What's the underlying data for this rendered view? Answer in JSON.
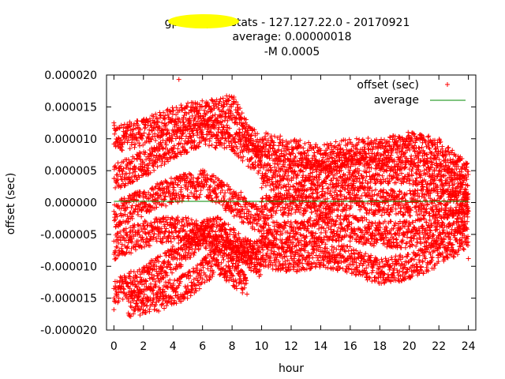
{
  "chart_data": {
    "type": "scatter",
    "title_lines": [
      {
        "prefix": "gps0/1",
        "suffix": " peerstats - 127.127.22.0 - 20170921"
      },
      "average: 0.00000018",
      "-M 0.0005"
    ],
    "xlabel": "hour",
    "ylabel": "offset (sec)",
    "xlim": [
      -0.5,
      24.5
    ],
    "ylim": [
      -2e-05,
      2e-05
    ],
    "x_ticks": [
      "0",
      "2",
      "4",
      "6",
      "8",
      "10",
      "12",
      "14",
      "16",
      "18",
      "20",
      "22",
      "24"
    ],
    "y_ticks": [
      "0.000020",
      "0.000015",
      "0.000010",
      "0.000005",
      "0.000000",
      "-0.000005",
      "-0.000010",
      "-0.000015",
      "-0.000020"
    ],
    "legend_position": "top-right",
    "series": [
      {
        "name": "offset (sec)",
        "style": "points",
        "marker": "plus",
        "color": "#ff0000",
        "bands": [
          {
            "x": [
              0,
              2,
              4,
              6,
              8,
              9,
              10
            ],
            "y": [
              1e-05,
              1.1e-05,
              1.3e-05,
              1.4e-05,
              1.5e-05,
              1.1e-05,
              8e-06
            ]
          },
          {
            "x": [
              0,
              2,
              4,
              6,
              8,
              10
            ],
            "y": [
              4e-06,
              6e-06,
              9e-06,
              1.1e-05,
              1e-05,
              6e-06
            ]
          },
          {
            "x": [
              0,
              2,
              4,
              6,
              7,
              8,
              10
            ],
            "y": [
              -2e-06,
              0.0,
              2e-06,
              3e-06,
              2e-06,
              0.0,
              -3e-06
            ]
          },
          {
            "x": [
              0,
              2,
              4,
              6,
              8,
              10
            ],
            "y": [
              -7e-06,
              -5e-06,
              -4e-06,
              -5e-06,
              -7e-06,
              -8e-06
            ]
          },
          {
            "x": [
              0,
              2,
              4,
              6,
              7,
              8,
              10
            ],
            "y": [
              -1.4e-05,
              -1.2e-05,
              -9e-06,
              -5e-06,
              -4e-06,
              -6e-06,
              -1e-05
            ]
          },
          {
            "x": [
              1,
              3,
              5,
              6,
              7,
              8,
              9
            ],
            "y": [
              -1.6e-05,
              -1.5e-05,
              -1.3e-05,
              -1.1e-05,
              -9e-06,
              -1.1e-05,
              -1.3e-05
            ]
          },
          {
            "x": [
              10,
              12,
              14,
              16,
              18,
              20,
              22,
              24
            ],
            "y": [
              9e-06,
              8e-06,
              7e-06,
              8e-06,
              8e-06,
              9e-06,
              8e-06,
              4e-06
            ]
          },
          {
            "x": [
              10,
              12,
              14,
              16,
              18,
              20,
              22,
              24
            ],
            "y": [
              4e-06,
              4e-06,
              4e-06,
              5e-06,
              5e-06,
              5e-06,
              4e-06,
              2e-06
            ]
          },
          {
            "x": [
              10,
              12,
              14,
              16,
              18,
              20,
              22,
              24
            ],
            "y": [
              -1e-06,
              0.0,
              0.0,
              1e-06,
              0.0,
              0.0,
              0.0,
              0.0
            ]
          },
          {
            "x": [
              10,
              12,
              14,
              16,
              18,
              20,
              22,
              24
            ],
            "y": [
              -5e-06,
              -5e-06,
              -4e-06,
              -4e-06,
              -5e-06,
              -5e-06,
              -4e-06,
              -2e-06
            ]
          },
          {
            "x": [
              10,
              12,
              14,
              16,
              18,
              20,
              22,
              24
            ],
            "y": [
              -8e-06,
              -9e-06,
              -8e-06,
              -9e-06,
              -1.1e-05,
              -1e-05,
              -8e-06,
              -5e-06
            ]
          }
        ],
        "outliers": [
          {
            "x": 4.4,
            "y": 1.93e-05
          },
          {
            "x": 8.6,
            "y": 1.6e-06
          },
          {
            "x": 24.0,
            "y": -8.8e-06
          },
          {
            "x": 0.0,
            "y": 1.25e-05
          },
          {
            "x": 0.0,
            "y": -1.68e-05
          }
        ]
      },
      {
        "name": "average",
        "style": "line",
        "color": "#008800",
        "x": [
          0,
          24
        ],
        "y": [
          1.8e-07,
          1.8e-07
        ]
      }
    ]
  }
}
